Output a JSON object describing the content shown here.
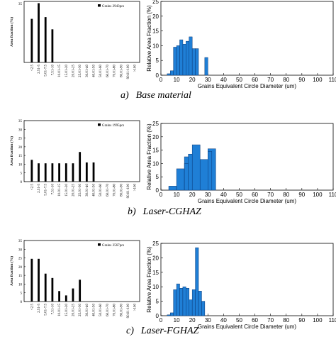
{
  "panels": [
    {
      "caption": {
        "letter": "a)",
        "text": "Base material"
      },
      "left": {
        "type": "bar",
        "ylabel": "Area fraction (%)",
        "legend": "Grains 2943pcs",
        "categories": [
          "<2.5",
          "2.51-5",
          "5.01-7.5",
          "7.51-10",
          "10.01-15",
          "15.01-20",
          "20.01-25",
          "25.01-30",
          "30.01-40",
          "40.01-50",
          "50.01-60",
          "60.01-70",
          "70.01-80",
          "80.01-90",
          "90.01-100",
          ">100"
        ],
        "values": [
          25,
          34,
          26,
          19,
          0,
          0,
          0,
          0,
          0,
          0,
          0,
          0,
          0,
          0,
          0,
          0
        ],
        "ylim": [
          0,
          35
        ],
        "yticks": [],
        "yticks_label": [],
        "top_tick": "35"
      },
      "right": {
        "type": "bar",
        "ylabel": "Relative Area Fraction (%)",
        "xlabel": "Grains Equivalent Circle Diameter (um)",
        "bins": [
          [
            4,
            6
          ],
          [
            6,
            8
          ],
          [
            8,
            10
          ],
          [
            10,
            12
          ],
          [
            12,
            14
          ],
          [
            14,
            16
          ],
          [
            16,
            18
          ],
          [
            18,
            20
          ],
          [
            20,
            22
          ],
          [
            22,
            24
          ],
          [
            24,
            26
          ],
          [
            26,
            28
          ],
          [
            28,
            30
          ]
        ],
        "values": [
          0.5,
          1.5,
          9.5,
          10,
          12,
          10.5,
          11.5,
          13,
          9,
          9,
          0,
          0,
          6
        ],
        "xlim": [
          0,
          110
        ],
        "ylim": [
          0,
          25
        ],
        "xticks": [
          0,
          10,
          20,
          30,
          40,
          50,
          60,
          70,
          80,
          90,
          100,
          110
        ],
        "yticks": [
          0,
          5,
          10,
          15,
          20,
          25
        ]
      }
    },
    {
      "caption": {
        "letter": "b)",
        "text": "Laser-CGHAZ"
      },
      "left": {
        "type": "bar",
        "ylabel": "Area fraction (%)",
        "legend": "Grains 1995pcs",
        "categories": [
          "<2.5",
          "2.51-5",
          "5.01-7.5",
          "7.51-10",
          "10.01-15",
          "15.01-20",
          "20.01-25",
          "25.01-30",
          "30.01-40",
          "40.01-50",
          "50.01-60",
          "60.01-70",
          "70.01-80",
          "80.01-90",
          "90.01-100",
          ">100"
        ],
        "values": [
          12.5,
          10.5,
          10.5,
          10.5,
          10.5,
          10.5,
          10.5,
          17,
          11,
          11,
          0,
          0,
          0,
          0,
          0,
          0
        ],
        "ylim": [
          0,
          35
        ],
        "yticks": [
          0,
          5,
          10,
          15,
          20,
          25,
          30,
          35
        ],
        "yticks_label": [
          "0",
          "5",
          "10",
          "15",
          "20",
          "25",
          "30",
          "35"
        ],
        "top_tick": ""
      },
      "right": {
        "type": "bar",
        "ylabel": "Relative Area Fraction (%)",
        "xlabel": "Grains Equivalent Circle Diameter (um)",
        "bins": [
          [
            5,
            10
          ],
          [
            10,
            15
          ],
          [
            15,
            20
          ],
          [
            20,
            25
          ],
          [
            25,
            30
          ],
          [
            30,
            35
          ]
        ],
        "values": [
          1.5,
          8,
          12.5,
          17,
          11.5,
          15.5
        ],
        "extra_bins": [
          [
            15,
            17.5
          ],
          [
            17.5,
            20
          ],
          [
            30,
            32.5
          ]
        ],
        "extra_values": [
          10,
          13.5,
          14.5
        ],
        "xlim": [
          0,
          110
        ],
        "ylim": [
          0,
          25
        ],
        "xticks": [
          0,
          10,
          20,
          30,
          40,
          50,
          60,
          70,
          80,
          90,
          100,
          110
        ],
        "yticks": [
          0,
          5,
          10,
          15,
          20,
          25
        ]
      }
    },
    {
      "caption": {
        "letter": "c)",
        "text": "Laser-FGHAZ"
      },
      "left": {
        "type": "bar",
        "ylabel": "Area fraction (%)",
        "legend": "Grains 3567pcs",
        "categories": [
          "<2.5",
          "2.51-5",
          "5.01-7.5",
          "7.51-10",
          "10.01-15",
          "15.01-20",
          "20.01-25",
          "25.01-30",
          "30.01-40",
          "40.01-50",
          "50.01-60",
          "60.01-70",
          "70.01-80",
          "80.01-90",
          "90.01-100",
          ">100"
        ],
        "values": [
          24.5,
          24.5,
          16,
          13.5,
          6,
          3.5,
          7.5,
          12.5,
          0,
          0,
          0,
          0,
          0,
          0,
          0,
          0
        ],
        "ylim": [
          0,
          35
        ],
        "yticks": [
          0,
          5,
          10,
          15,
          20,
          25,
          30,
          35
        ],
        "yticks_label": [
          "0",
          "5",
          "10",
          "15",
          "20",
          "25",
          "30",
          "35"
        ],
        "top_tick": ""
      },
      "right": {
        "type": "bar",
        "ylabel": "Relative Area Fraction (%)",
        "xlabel": "Grains Equivalent Circle Diameter (um)",
        "bins": [
          [
            4,
            6
          ],
          [
            6,
            8
          ],
          [
            8,
            10
          ],
          [
            10,
            12
          ],
          [
            12,
            14
          ],
          [
            14,
            16
          ],
          [
            16,
            18
          ],
          [
            18,
            20
          ],
          [
            20,
            22
          ],
          [
            22,
            24
          ],
          [
            24,
            26
          ],
          [
            26,
            28
          ]
        ],
        "values": [
          0.3,
          1,
          9,
          11,
          9.5,
          10,
          9.5,
          5.5,
          9,
          23.5,
          8.5,
          5
        ],
        "xlim": [
          0,
          110
        ],
        "ylim": [
          0,
          25
        ],
        "xticks": [
          0,
          10,
          20,
          30,
          40,
          50,
          60,
          70,
          80,
          90,
          100,
          110
        ],
        "yticks": [
          0,
          5,
          10,
          15,
          20,
          25
        ]
      }
    }
  ]
}
